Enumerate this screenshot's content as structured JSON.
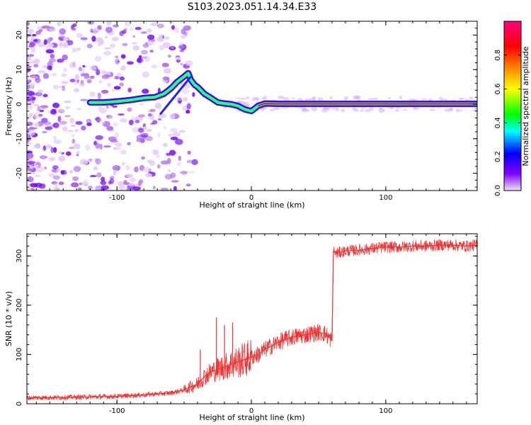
{
  "figure": {
    "title": "S103.2023.051.14.34.E33"
  },
  "chart_data": [
    {
      "type": "heatmap",
      "title": "S103.2023.051.14.34.E33",
      "xlabel": "Height of straight line (km)",
      "ylabel": "Frequency (Hz)",
      "xlim": [
        -167,
        168
      ],
      "ylim": [
        -25,
        24
      ],
      "xticks": [
        -100,
        0,
        100
      ],
      "yticks": [
        -20,
        -10,
        0,
        10,
        20
      ],
      "ridge": {
        "x": [
          -120,
          -110,
          -100,
          -90,
          -80,
          -72,
          -65,
          -60,
          -55,
          -50,
          -47,
          -45,
          -42,
          -40,
          -35,
          -30,
          -25,
          -20,
          -15,
          -10,
          -5,
          0,
          5,
          10,
          20,
          40,
          60,
          80,
          100,
          120,
          140,
          168
        ],
        "y": [
          0.5,
          0.5,
          0.8,
          1.2,
          1.8,
          2.0,
          3.0,
          4.5,
          6.5,
          8.0,
          9.0,
          7.0,
          5.5,
          5.0,
          3.0,
          1.8,
          0.5,
          0.2,
          0.0,
          -0.5,
          -1.5,
          -2.0,
          -0.5,
          0.2,
          0.1,
          0.1,
          0.1,
          0.1,
          0.1,
          0.1,
          0.1,
          0.1
        ]
      },
      "colorbar": {
        "label": "Normalized spectral amplitude",
        "range": [
          0,
          1
        ],
        "ticks": [
          0.0,
          0.2,
          0.4,
          0.6,
          0.8
        ],
        "colors": [
          "#f0e0ff",
          "#8000ff",
          "#0000ff",
          "#00ffff",
          "#00ff00",
          "#ffff00",
          "#ff8000",
          "#ff0000",
          "#ff0080"
        ]
      }
    },
    {
      "type": "line",
      "xlabel": "Height of straight line (km)",
      "ylabel": "SNR (10 * v/v)",
      "xlim": [
        -167,
        168
      ],
      "ylim": [
        0,
        345
      ],
      "xticks": [
        -100,
        0,
        100
      ],
      "yticks": [
        0,
        100,
        200,
        300
      ],
      "color": "#ee3333",
      "series": [
        {
          "x": [
            -167,
            -140,
            -120,
            -100,
            -80,
            -60,
            -50,
            -45,
            -40,
            -35,
            -30,
            -25,
            -20,
            -15,
            -10,
            -5,
            0,
            5,
            10,
            20,
            30,
            40,
            50,
            55,
            60,
            61,
            63,
            70,
            80,
            90,
            100,
            110,
            120,
            130,
            140,
            150,
            160,
            168
          ],
          "y": [
            12,
            13,
            14,
            15,
            18,
            22,
            28,
            35,
            40,
            55,
            65,
            70,
            75,
            80,
            85,
            90,
            95,
            100,
            110,
            125,
            135,
            140,
            145,
            142,
            128,
            310,
            305,
            310,
            312,
            315,
            318,
            318,
            320,
            320,
            322,
            322,
            320,
            322
          ]
        }
      ],
      "spikes": [
        {
          "x": -26,
          "y": 175
        },
        {
          "x": -14,
          "y": 165
        },
        {
          "x": -20,
          "y": 160
        },
        {
          "x": -38,
          "y": 110
        }
      ]
    }
  ]
}
